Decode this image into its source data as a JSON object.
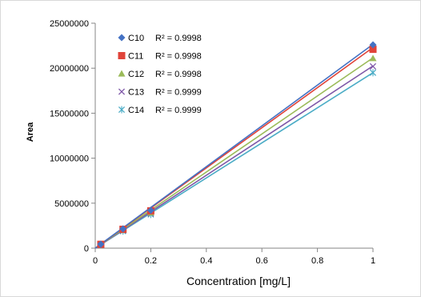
{
  "chart_data": {
    "type": "scatter",
    "title": "",
    "xlabel": "Concentration [mg/L]",
    "ylabel": "Area",
    "xlim": [
      0,
      1
    ],
    "ylim": [
      0,
      25000000
    ],
    "xticks": [
      0,
      0.2,
      0.4,
      0.6,
      0.8,
      1
    ],
    "xtick_labels": [
      "0",
      "0.2",
      "0.4",
      "0.6",
      "0.8",
      "1"
    ],
    "yticks": [
      0,
      5000000,
      10000000,
      15000000,
      20000000,
      25000000
    ],
    "ytick_labels": [
      "0",
      "5000000",
      "10000000",
      "15000000",
      "20000000",
      "25000000"
    ],
    "grid": false,
    "legend_position": "top-left",
    "x": [
      0.02,
      0.1,
      0.2,
      1
    ],
    "series": [
      {
        "name": "C10",
        "marker": "diamond",
        "color": "#4472C4",
        "values": [
          450000,
          2150000,
          4200000,
          22600000
        ],
        "trendline": [
          0,
          22650000
        ],
        "r2_label": "R² = 0.9998"
      },
      {
        "name": "C11",
        "marker": "square",
        "color": "#E0443A",
        "values": [
          430000,
          2100000,
          4150000,
          22100000
        ],
        "trendline": [
          0,
          22300000
        ],
        "r2_label": "R² = 0.9998"
      },
      {
        "name": "C12",
        "marker": "triangle",
        "color": "#9BBB59",
        "values": [
          400000,
          2000000,
          3950000,
          21100000
        ],
        "trendline": [
          0,
          21150000
        ],
        "r2_label": "R² = 0.9998"
      },
      {
        "name": "C13",
        "marker": "x",
        "color": "#7E57A8",
        "values": [
          390000,
          1950000,
          3850000,
          20200000
        ],
        "trendline": [
          0,
          20250000
        ],
        "r2_label": "R² = 0.9999"
      },
      {
        "name": "C14",
        "marker": "star",
        "color": "#4BACC6",
        "values": [
          380000,
          1900000,
          3750000,
          19500000
        ],
        "trendline": [
          0,
          19500000
        ],
        "r2_label": "R² = 0.9999"
      }
    ]
  }
}
